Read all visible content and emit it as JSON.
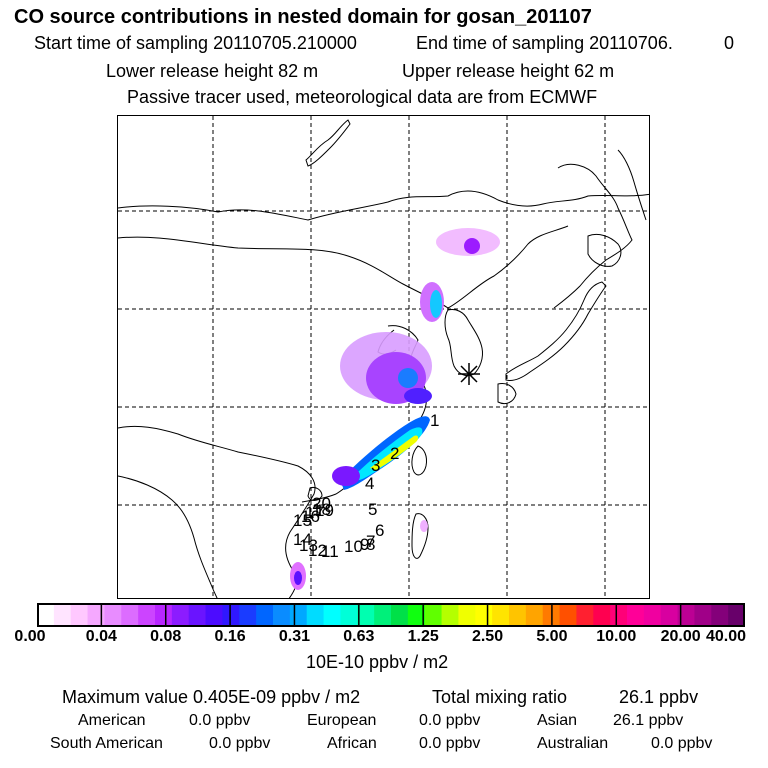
{
  "header": {
    "title": "CO  source contributions in nested domain for gosan_201107",
    "start_label": "Start time of sampling 20110705.210000",
    "end_label": "End time of sampling 20110706.",
    "end_suffix": "0",
    "lower_release": "Lower release height   82 m",
    "upper_release": "Upper release height   62 m",
    "tracer_note": "Passive tracer used, meteorological data are from ECMWF"
  },
  "map": {
    "station_marker": "asterisk-icon",
    "labels": [
      "1",
      "2",
      "3",
      "4",
      "5",
      "6",
      "7",
      "8",
      "9",
      "10",
      "11",
      "12",
      "13",
      "14",
      "15",
      "16",
      "17",
      "18",
      "19",
      "20"
    ]
  },
  "colorbar": {
    "units": "10E-10 ppbv / m2",
    "ticks": [
      "0.00",
      "0.04",
      "0.08",
      "0.16",
      "0.31",
      "0.63",
      "1.25",
      "2.50",
      "5.00",
      "10.00",
      "20.00",
      "40.00"
    ],
    "colors": [
      "#ffffff",
      "#ffe4ff",
      "#ffc8ff",
      "#f5a8ff",
      "#e88cff",
      "#dc6cff",
      "#cc44ff",
      "#b826ff",
      "#8c1cff",
      "#6a14ff",
      "#4c0cff",
      "#3018ff",
      "#1a3cff",
      "#0066ff",
      "#0a8cff",
      "#00a8ff",
      "#00dcff",
      "#00ffff",
      "#00ffd8",
      "#00ffb0",
      "#00f07a",
      "#00e048",
      "#10ff10",
      "#60ff00",
      "#b4ff00",
      "#f0ff00",
      "#ffff00",
      "#ffe400",
      "#ffc400",
      "#ffa400",
      "#ff7a00",
      "#ff5000",
      "#ff2030",
      "#ff0050",
      "#ff0078",
      "#ff0098",
      "#f000a0",
      "#d800a0",
      "#bc0094",
      "#a00088",
      "#84007a",
      "#68006a"
    ]
  },
  "summary": {
    "max_label": "Maximum value  0.405E-09 ppbv / m2",
    "total_label": "Total mixing ratio",
    "total_value": "26.1 ppbv",
    "regions": [
      {
        "name": "American",
        "value": "0.0 ppbv"
      },
      {
        "name": "European",
        "value": "0.0 ppbv"
      },
      {
        "name": "Asian",
        "value": "26.1 ppbv"
      },
      {
        "name": "South American",
        "value": "0.0 ppbv"
      },
      {
        "name": "African",
        "value": "0.0 ppbv"
      },
      {
        "name": "Australian",
        "value": "0.0 ppbv"
      }
    ]
  }
}
